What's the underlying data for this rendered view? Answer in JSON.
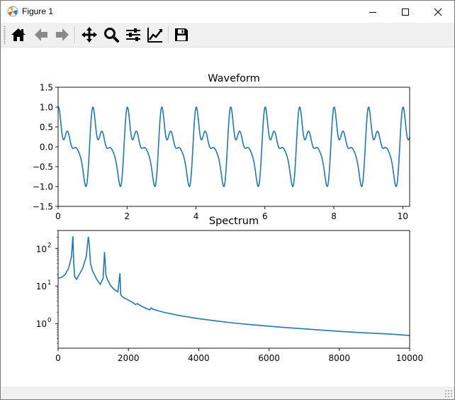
{
  "window": {
    "title": "Figure 1",
    "minimize_icon": "minimize-icon",
    "maximize_icon": "maximize-icon",
    "close_icon": "close-icon"
  },
  "toolbar": {
    "items": [
      {
        "name": "home-icon",
        "tooltip": "Home"
      },
      {
        "name": "back-arrow-icon",
        "tooltip": "Back"
      },
      {
        "name": "forward-arrow-icon",
        "tooltip": "Forward"
      },
      {
        "name": "pan-icon",
        "tooltip": "Pan"
      },
      {
        "name": "zoom-icon",
        "tooltip": "Zoom"
      },
      {
        "name": "subplots-icon",
        "tooltip": "Subplots"
      },
      {
        "name": "edit-axes-icon",
        "tooltip": "Customize"
      },
      {
        "name": "save-icon",
        "tooltip": "Save"
      }
    ]
  },
  "colors": {
    "line": "#1f77b4",
    "axis": "#000000"
  },
  "chart_data": [
    {
      "type": "line",
      "title": "Waveform",
      "xlabel": "",
      "ylabel": "",
      "xlim": [
        0,
        10.2
      ],
      "ylim": [
        -1.5,
        1.5
      ],
      "xticks": [
        "0",
        "2",
        "4",
        "6",
        "8",
        "10"
      ],
      "xtick_values": [
        0,
        2,
        4,
        6,
        8,
        10
      ],
      "yticks": [
        "1.5",
        "1.0",
        "0.5",
        "0.0",
        "−0.5",
        "−1.0",
        "−1.5"
      ],
      "ytick_values": [
        1.5,
        1.0,
        0.5,
        0.0,
        -0.5,
        -1.0,
        -1.5
      ],
      "grid": false,
      "series": [
        {
          "function": "sin(2π·t) harmonic mix",
          "period": 1.0,
          "peak": 1.0,
          "trough": -1.0
        }
      ]
    },
    {
      "type": "line",
      "title": "Spectrum",
      "xlabel": "",
      "ylabel": "",
      "xlim": [
        0,
        10000
      ],
      "yscale": "log",
      "ylim": [
        0.22,
        300
      ],
      "xticks": [
        "0",
        "2000",
        "4000",
        "6000",
        "8000",
        "10000"
      ],
      "xtick_values": [
        0,
        2000,
        4000,
        6000,
        8000,
        10000
      ],
      "yticks": [
        "10",
        "10",
        "10"
      ],
      "ytick_exponents": [
        "2",
        "1",
        "0"
      ],
      "ytick_values": [
        100,
        10,
        1
      ],
      "grid": false,
      "series": [
        {
          "x": [
            0,
            100,
            200,
            300,
            380,
            420,
            445,
            470,
            520,
            600,
            700,
            800,
            860,
            890,
            920,
            980,
            1100,
            1200,
            1280,
            1320,
            1340,
            1360,
            1400,
            1500,
            1600,
            1700,
            1760,
            1780,
            1800,
            1850,
            2000,
            2150,
            2200,
            2250,
            2400,
            2600,
            2650,
            2700,
            3000,
            3500,
            4000,
            4500,
            5000,
            5500,
            6000,
            6500,
            7000,
            7500,
            8000,
            8500,
            9000,
            9500,
            10000
          ],
          "y": [
            16,
            17,
            20,
            30,
            60,
            210,
            40,
            18,
            15,
            20,
            30,
            60,
            205,
            120,
            40,
            25,
            15,
            11,
            16,
            80,
            40,
            20,
            15,
            10,
            8,
            7,
            22,
            6,
            5.5,
            5,
            4.2,
            3.5,
            3.2,
            3.4,
            2.8,
            2.3,
            2.6,
            2.4,
            2.0,
            1.6,
            1.35,
            1.17,
            1.03,
            0.93,
            0.85,
            0.78,
            0.72,
            0.67,
            0.62,
            0.58,
            0.55,
            0.52,
            0.48
          ]
        }
      ]
    }
  ]
}
